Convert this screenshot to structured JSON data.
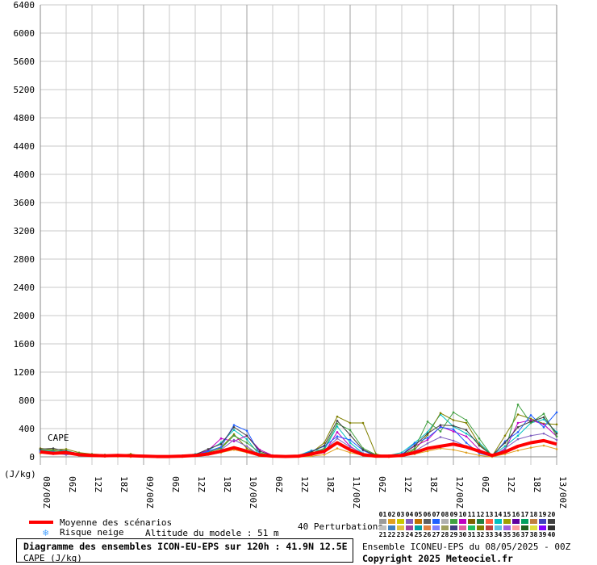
{
  "chart_data": {
    "type": "line",
    "ylabel": "(J/kg)",
    "series_label": "CAPE",
    "ylim": [
      0,
      6400
    ],
    "yticks": [
      "0",
      "400",
      "800",
      "1200",
      "1600",
      "2000",
      "2400",
      "2800",
      "3200",
      "3600",
      "4000",
      "4400",
      "4800",
      "5200",
      "5600",
      "6000",
      "6400"
    ],
    "xticks": [
      "08/00Z",
      "06Z",
      "12Z",
      "18Z",
      "09/00Z",
      "06Z",
      "12Z",
      "18Z",
      "10/00Z",
      "06Z",
      "12Z",
      "18Z",
      "11/00Z",
      "06Z",
      "12Z",
      "18Z",
      "12/00Z",
      "06Z",
      "12Z",
      "18Z",
      "13/00Z"
    ],
    "x_hours": [
      0,
      3,
      6,
      9,
      12,
      15,
      18,
      21,
      24,
      27,
      30,
      33,
      36,
      39,
      42,
      45,
      48,
      51,
      54,
      57,
      60,
      63,
      66,
      69,
      72,
      75,
      78,
      81,
      84,
      87,
      90,
      93,
      96,
      99,
      102,
      105,
      108,
      111,
      114,
      117,
      120
    ],
    "mean": {
      "name": "Moyenne des scénarios",
      "color": "#ff0000",
      "values": [
        70,
        50,
        60,
        30,
        20,
        15,
        20,
        15,
        10,
        5,
        5,
        10,
        20,
        40,
        80,
        130,
        80,
        25,
        10,
        5,
        10,
        40,
        80,
        200,
        100,
        30,
        10,
        10,
        20,
        60,
        120,
        150,
        180,
        140,
        80,
        20,
        70,
        150,
        200,
        230,
        180
      ]
    },
    "members": [
      [
        90,
        80,
        90,
        40,
        30,
        20,
        30,
        10,
        5,
        0,
        5,
        20,
        40,
        90,
        200,
        380,
        250,
        20,
        5,
        0,
        20,
        90,
        100,
        430,
        200,
        50,
        10,
        20,
        60,
        200,
        350,
        600,
        430,
        330,
        200,
        20,
        150,
        300,
        480,
        530,
        350
      ],
      [
        120,
        100,
        110,
        60,
        40,
        30,
        20,
        40,
        10,
        0,
        10,
        15,
        25,
        60,
        130,
        320,
        120,
        40,
        20,
        0,
        10,
        60,
        200,
        570,
        480,
        480,
        40,
        0,
        10,
        100,
        310,
        620,
        520,
        480,
        180,
        10,
        300,
        600,
        540,
        470,
        460
      ],
      [
        60,
        40,
        50,
        25,
        10,
        5,
        30,
        20,
        15,
        0,
        0,
        10,
        30,
        90,
        260,
        220,
        300,
        100,
        20,
        0,
        5,
        30,
        60,
        350,
        150,
        40,
        20,
        10,
        40,
        150,
        240,
        430,
        360,
        290,
        100,
        30,
        100,
        480,
        520,
        460,
        290
      ],
      [
        100,
        90,
        70,
        50,
        35,
        20,
        25,
        10,
        10,
        5,
        5,
        5,
        15,
        70,
        120,
        300,
        200,
        60,
        10,
        5,
        10,
        50,
        120,
        470,
        380,
        120,
        30,
        10,
        20,
        120,
        500,
        360,
        630,
        520,
        260,
        10,
        80,
        740,
        480,
        610,
        290
      ],
      [
        80,
        70,
        60,
        30,
        25,
        15,
        10,
        5,
        5,
        0,
        5,
        10,
        20,
        80,
        140,
        450,
        370,
        40,
        10,
        0,
        15,
        80,
        150,
        290,
        240,
        90,
        10,
        5,
        30,
        190,
        270,
        420,
        390,
        200,
        50,
        5,
        220,
        350,
        590,
        420,
        630
      ],
      [
        50,
        60,
        40,
        20,
        10,
        5,
        5,
        0,
        0,
        0,
        0,
        0,
        10,
        30,
        60,
        100,
        60,
        10,
        0,
        0,
        0,
        10,
        30,
        120,
        60,
        20,
        0,
        0,
        10,
        40,
        80,
        120,
        100,
        60,
        20,
        0,
        40,
        90,
        130,
        160,
        110
      ],
      [
        70,
        50,
        30,
        40,
        20,
        10,
        15,
        10,
        5,
        0,
        0,
        5,
        10,
        50,
        100,
        240,
        150,
        20,
        5,
        0,
        5,
        40,
        90,
        260,
        140,
        50,
        10,
        5,
        15,
        80,
        190,
        280,
        230,
        150,
        60,
        10,
        120,
        250,
        300,
        330,
        240
      ],
      [
        110,
        120,
        80,
        40,
        30,
        25,
        20,
        15,
        10,
        0,
        5,
        15,
        30,
        110,
        180,
        420,
        300,
        80,
        15,
        0,
        10,
        70,
        160,
        510,
        310,
        100,
        20,
        10,
        25,
        160,
        330,
        450,
        440,
        380,
        160,
        20,
        200,
        420,
        500,
        560,
        330
      ]
    ],
    "legend": {
      "mean_label": "Moyenne des scénarios",
      "snow_label": "Risque neige",
      "altitude": "Altitude du modele : 51 m",
      "perturbations": "40 Perturbations",
      "members_top": [
        "01",
        "02",
        "03",
        "04",
        "05",
        "06",
        "07",
        "08",
        "09",
        "10",
        "11",
        "12",
        "13",
        "14",
        "15",
        "16",
        "17",
        "18",
        "19",
        "20"
      ],
      "members_bottom": [
        "21",
        "22",
        "23",
        "24",
        "25",
        "26",
        "27",
        "28",
        "29",
        "30",
        "31",
        "32",
        "33",
        "34",
        "35",
        "36",
        "37",
        "38",
        "39",
        "40"
      ],
      "colors_top": [
        "#9b9b9b",
        "#e0a020",
        "#c8c800",
        "#8060c0",
        "#c07000",
        "#606060",
        "#2060ff",
        "#b0b0b0",
        "#40a040",
        "#c000c0",
        "#806000",
        "#208040",
        "#ff6040",
        "#00c0c0",
        "#a0a000",
        "#6000a0",
        "#00a060",
        "#c08040",
        "#4040c0",
        "#404040"
      ],
      "colors_bottom": [
        "#c0c0c0",
        "#4080c0",
        "#e0c040",
        "#a040a0",
        "#00a0a0",
        "#e08040",
        "#8080ff",
        "#a0a060",
        "#404080",
        "#e060a0",
        "#20c060",
        "#808000",
        "#c04040",
        "#60c0e0",
        "#a060e0",
        "#ffa0a0",
        "#206020",
        "#e0e040",
        "#8000ff",
        "#303030"
      ]
    }
  },
  "caption": {
    "title": "Diagramme des ensembles ICON-EU-EPS sur 120h : 41.9N 12.5E",
    "subtitle": "CAPE (J/kg)"
  },
  "footer": {
    "ensemble": "Ensemble ICONEU-EPS du 08/05/2025 - 00Z",
    "copyright": "Copyright 2025 Meteociel.fr"
  },
  "colors": {
    "grid": "#c8c8c8",
    "day_line": "#a0a0a0",
    "mean": "#ff0000"
  },
  "member_colors": [
    "#00c0c0",
    "#808000",
    "#c000c0",
    "#40a040",
    "#2060ff",
    "#e0a020",
    "#8060c0",
    "#404040"
  ]
}
